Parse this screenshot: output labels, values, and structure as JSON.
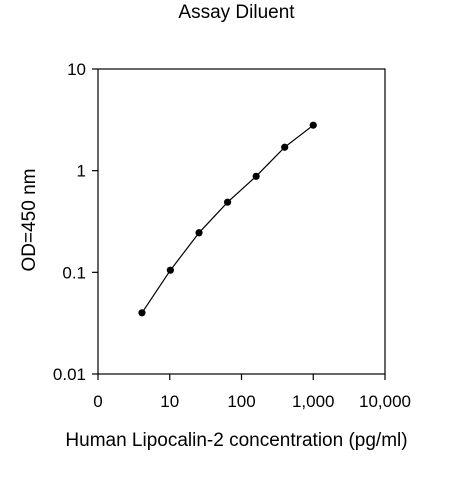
{
  "chart_data": {
    "type": "scatter",
    "title": "Assay Diluent",
    "xlabel": "Human Lipocalin-2 concentration (pg/ml)",
    "ylabel": "OD=450 nm",
    "x_scale": "log",
    "y_scale": "log",
    "xlim": [
      1,
      10000
    ],
    "ylim": [
      0.01,
      10
    ],
    "x_ticks": [
      1,
      10,
      100,
      1000,
      10000
    ],
    "x_tick_labels": [
      "0",
      "10",
      "100",
      "1,000",
      "10,000"
    ],
    "y_ticks": [
      0.01,
      0.1,
      1,
      10
    ],
    "y_tick_labels": [
      "0.01",
      "0.1",
      "1",
      "10"
    ],
    "grid": false,
    "legend": "none",
    "series": [
      {
        "x": [
          4.1,
          10.2,
          25.6,
          64,
          160,
          400,
          1000
        ],
        "y": [
          0.04,
          0.105,
          0.245,
          0.49,
          0.88,
          1.7,
          2.8
        ],
        "color": "#000000",
        "marker": "circle",
        "line": true
      }
    ]
  }
}
